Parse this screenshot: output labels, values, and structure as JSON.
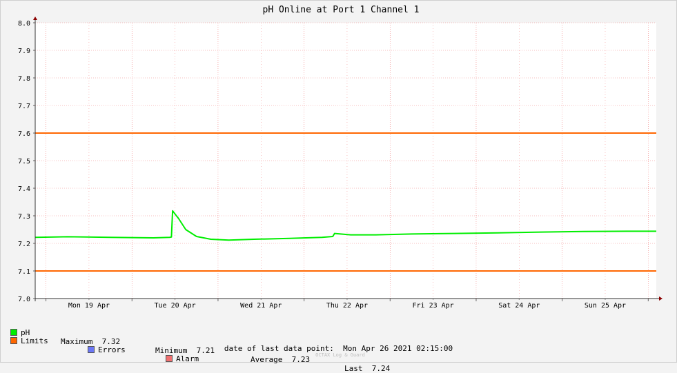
{
  "chart_data": {
    "type": "line",
    "title": "pH Online at Port 1 Channel 1",
    "ylim": [
      7.0,
      8.0
    ],
    "yticks": [
      "7.0",
      "7.1",
      "7.2",
      "7.3",
      "7.4",
      "7.5",
      "7.6",
      "7.7",
      "7.8",
      "7.9",
      "8.0"
    ],
    "x_start": "Sun Apr 18 2021 21:00",
    "x_end": "Mon Apr 26 2021 02:15",
    "x_tick_labels": [
      {
        "label": "Mon 19 Apr",
        "at": "2021-04-19T12:00"
      },
      {
        "label": "Tue 20 Apr",
        "at": "2021-04-20T12:00"
      },
      {
        "label": "Wed 21 Apr",
        "at": "2021-04-21T12:00"
      },
      {
        "label": "Thu 22 Apr",
        "at": "2021-04-22T12:00"
      },
      {
        "label": "Fri 23 Apr",
        "at": "2021-04-23T12:00"
      },
      {
        "label": "Sat 24 Apr",
        "at": "2021-04-24T12:00"
      },
      {
        "label": "Sun 25 Apr",
        "at": "2021-04-25T12:00"
      }
    ],
    "series": [
      {
        "name": "pH",
        "color": "#00ee00",
        "points": [
          [
            "2021-04-18T21:00",
            7.222
          ],
          [
            "2021-04-19T06:00",
            7.224
          ],
          [
            "2021-04-19T18:00",
            7.222
          ],
          [
            "2021-04-20T06:00",
            7.22
          ],
          [
            "2021-04-20T10:30",
            7.222
          ],
          [
            "2021-04-20T11:00",
            7.223
          ],
          [
            "2021-04-20T11:20",
            7.318
          ],
          [
            "2021-04-20T13:00",
            7.29
          ],
          [
            "2021-04-20T15:00",
            7.25
          ],
          [
            "2021-04-20T18:00",
            7.225
          ],
          [
            "2021-04-20T22:00",
            7.215
          ],
          [
            "2021-04-21T03:00",
            7.212
          ],
          [
            "2021-04-21T10:00",
            7.215
          ],
          [
            "2021-04-21T20:00",
            7.218
          ],
          [
            "2021-04-22T05:00",
            7.222
          ],
          [
            "2021-04-22T08:00",
            7.225
          ],
          [
            "2021-04-22T08:30",
            7.236
          ],
          [
            "2021-04-22T13:00",
            7.231
          ],
          [
            "2021-04-22T20:00",
            7.231
          ],
          [
            "2021-04-23T06:00",
            7.234
          ],
          [
            "2021-04-23T18:00",
            7.236
          ],
          [
            "2021-04-24T06:00",
            7.238
          ],
          [
            "2021-04-24T18:00",
            7.241
          ],
          [
            "2021-04-25T06:00",
            7.243
          ],
          [
            "2021-04-25T18:00",
            7.244
          ],
          [
            "2021-04-26T02:15",
            7.244
          ]
        ]
      }
    ],
    "limits": {
      "name": "Limits",
      "color": "#ff6600",
      "values": [
        7.6,
        7.1
      ]
    },
    "grid": true,
    "legend_placement": "bottom-left"
  },
  "legend": {
    "ph": {
      "name": "pH",
      "color": "#00ee00"
    },
    "stats": [
      {
        "label": "Maximum",
        "value": "7.32"
      },
      {
        "label": "Minimum",
        "value": "7.21"
      },
      {
        "label": "Average",
        "value": "7.23"
      },
      {
        "label": "Last",
        "value": "7.24"
      }
    ],
    "limits": {
      "name": "Limits",
      "color": "#ff6600"
    },
    "errors": {
      "name": "Errors",
      "color": "#6b77f5"
    },
    "alarm": {
      "name": "Alarm",
      "color": "#f07070"
    }
  },
  "footer": {
    "label": "date of last data point:",
    "value": "Mon Apr 26 2021 02:15:00"
  },
  "credit": "OCTAX Log & Guard"
}
